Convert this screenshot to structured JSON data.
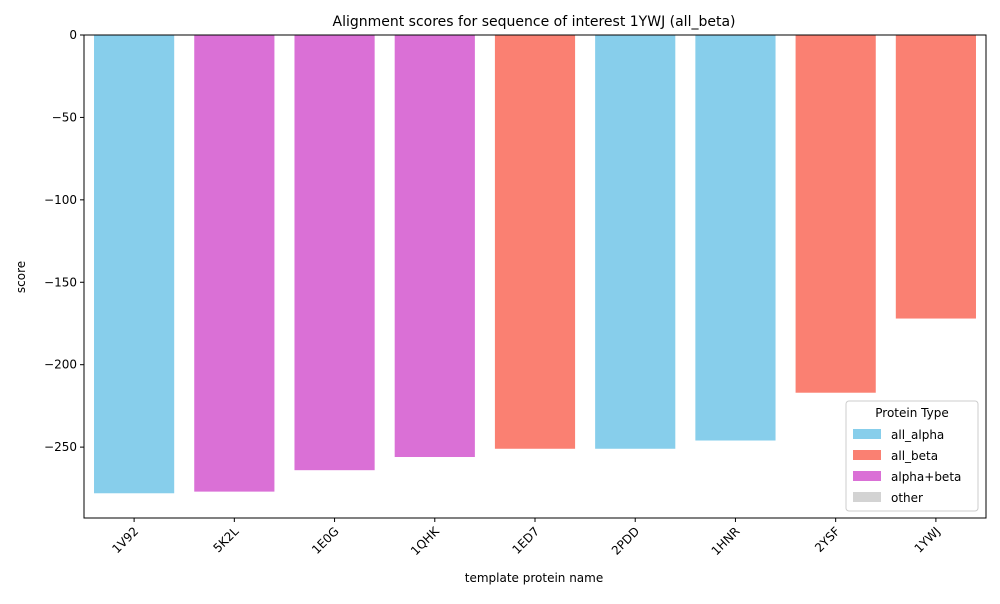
{
  "chart_data": {
    "type": "bar",
    "title": "Alignment scores for sequence of interest 1YWJ (all_beta)",
    "xlabel": "template protein name",
    "ylabel": "score",
    "categories": [
      "1V92",
      "5K2L",
      "1E0G",
      "1QHK",
      "1ED7",
      "2PDD",
      "1HNR",
      "2YSF",
      "1YWJ"
    ],
    "values": [
      -278,
      -277,
      -264,
      -256,
      -251,
      -251,
      -246,
      -217,
      -172
    ],
    "bar_types": [
      "all_alpha",
      "alpha+beta",
      "alpha+beta",
      "alpha+beta",
      "all_beta",
      "all_alpha",
      "all_alpha",
      "all_beta",
      "all_beta"
    ],
    "ylim": [
      -293,
      0
    ],
    "yticks": [
      0,
      -50,
      -100,
      -150,
      -200,
      -250
    ],
    "ytick_labels": [
      "0",
      "−50",
      "−100",
      "−150",
      "−200",
      "−250"
    ],
    "grid": false,
    "legend": {
      "title": "Protein Type",
      "placement": "lower-right",
      "entries": [
        {
          "label": "all_alpha",
          "color": "#87ceeb"
        },
        {
          "label": "all_beta",
          "color": "#fa8072"
        },
        {
          "label": "alpha+beta",
          "color": "#da70d6"
        },
        {
          "label": "other",
          "color": "#d3d3d3"
        }
      ]
    },
    "colors": {
      "all_alpha": "#87ceeb",
      "all_beta": "#fa8072",
      "alpha+beta": "#da70d6",
      "other": "#d3d3d3"
    }
  }
}
